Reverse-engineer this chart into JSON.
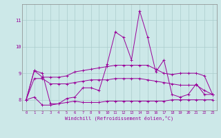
{
  "xlabel": "Windchill (Refroidissement éolien,°C)",
  "background_color": "#cce8e8",
  "line_color": "#990099",
  "grid_color": "#aacccc",
  "xlim": [
    -0.5,
    23.5
  ],
  "ylim": [
    7.6,
    11.6
  ],
  "yticks": [
    8,
    9,
    10,
    11
  ],
  "xticks": [
    0,
    1,
    2,
    3,
    4,
    5,
    6,
    7,
    8,
    9,
    10,
    11,
    12,
    13,
    14,
    15,
    16,
    17,
    18,
    19,
    20,
    21,
    22,
    23
  ],
  "line1": [
    8.0,
    9.1,
    9.0,
    7.85,
    7.85,
    8.05,
    8.1,
    8.45,
    8.45,
    8.35,
    9.35,
    10.55,
    10.35,
    9.5,
    11.35,
    10.35,
    9.05,
    9.5,
    8.2,
    8.1,
    8.2,
    8.6,
    8.2,
    8.2
  ],
  "line2": [
    8.0,
    9.1,
    8.85,
    8.85,
    8.85,
    8.9,
    9.05,
    9.1,
    9.15,
    9.2,
    9.25,
    9.3,
    9.3,
    9.3,
    9.3,
    9.3,
    9.15,
    9.0,
    8.95,
    9.0,
    9.0,
    9.0,
    8.9,
    8.2
  ],
  "line3": [
    8.0,
    8.8,
    8.8,
    8.6,
    8.6,
    8.6,
    8.65,
    8.7,
    8.75,
    8.75,
    8.75,
    8.8,
    8.8,
    8.8,
    8.8,
    8.75,
    8.7,
    8.65,
    8.6,
    8.55,
    8.55,
    8.55,
    8.35,
    8.2
  ],
  "line4": [
    8.0,
    8.1,
    7.8,
    7.8,
    7.85,
    7.9,
    7.95,
    7.9,
    7.9,
    7.9,
    7.95,
    7.95,
    7.95,
    7.95,
    7.95,
    7.95,
    7.95,
    7.95,
    8.0,
    8.0,
    8.0,
    8.0,
    8.0,
    8.0
  ]
}
